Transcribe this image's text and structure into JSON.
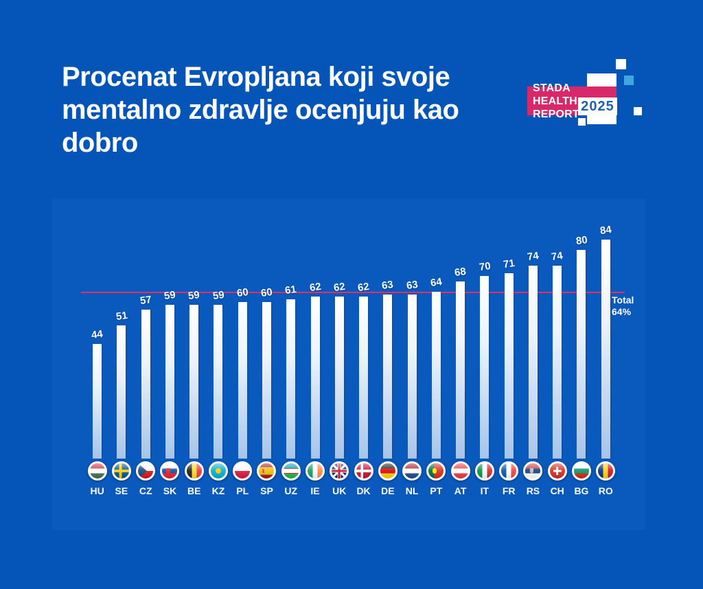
{
  "title": "Procenat Evropljana koji svoje mentalno zdravlje ocenjuju kao dobro",
  "logo": {
    "line1": "STADA HEALTH",
    "line2": "REPORT",
    "year": "2025"
  },
  "chart_data": {
    "type": "bar",
    "title": "Procenat Evropljana koji svoje mentalno zdravlje ocenjuju kao dobro",
    "categories": [
      "HU",
      "SE",
      "CZ",
      "SK",
      "BE",
      "KZ",
      "PL",
      "SP",
      "UZ",
      "IE",
      "UK",
      "DK",
      "DE",
      "NL",
      "PT",
      "AT",
      "IT",
      "FR",
      "RS",
      "CH",
      "BG",
      "RO"
    ],
    "values": [
      44,
      51,
      57,
      59,
      59,
      59,
      60,
      60,
      61,
      62,
      62,
      62,
      63,
      63,
      64,
      68,
      70,
      71,
      74,
      74,
      80,
      84
    ],
    "flags": [
      "hu",
      "se",
      "cz",
      "sk",
      "be",
      "kz",
      "pl",
      "sp",
      "uz",
      "ie",
      "uk",
      "dk",
      "de",
      "nl",
      "pt",
      "at",
      "it",
      "fr",
      "rs",
      "ch",
      "bg",
      "ro"
    ],
    "unit": "%",
    "ylim": [
      0,
      100
    ],
    "grid": false,
    "legend": false,
    "total_line": {
      "label": "Total",
      "value": "64%",
      "y": 64
    },
    "bar_color_top": "#ffffff",
    "bar_color_bottom": "#a6c4ea",
    "line_color": "#e0306a"
  },
  "colors": {
    "background": "#0455b7",
    "panel": "#0a59bc",
    "accent_pink": "#d8286a",
    "logo_year_blue": "#1d60b5",
    "logo_cyan": "#3fa7e0",
    "text": "#ffffff"
  }
}
